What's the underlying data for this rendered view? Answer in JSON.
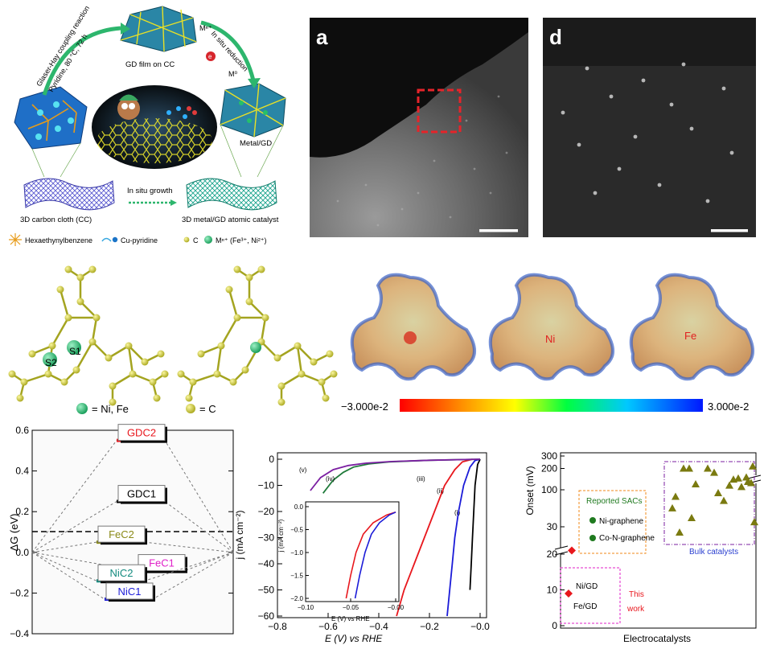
{
  "schematic": {
    "reaction_label": "Glaser-Hay coupling reaction",
    "conditions_label": "Pyridine, 80 °C, 72 h",
    "gd_film_label": "GD film on CC",
    "insitu_reduction_label": "In situ reduction",
    "mn_plus": "Mⁿ⁺",
    "electron": "e",
    "m0": "M⁰",
    "metal_gd_label": "Metal/GD",
    "cc_label": "3D carbon cloth (CC)",
    "insitu_growth_label": "In situ growth",
    "catalyst_label": "3D metal/GD atomic catalyst",
    "legend": {
      "hexa": "Hexaethynylbenzene",
      "cupy": "Cu-pyridine",
      "c": "C",
      "metal": "Mⁿ⁺ (Fe³⁺, Ni²⁺)"
    }
  },
  "micrographs": {
    "panel_a": "a",
    "panel_d": "d"
  },
  "structure": {
    "s1": "S1",
    "s2": "S2",
    "legend_metal": "= Ni, Fe",
    "legend_c": "= C"
  },
  "esp": {
    "ni_label": "Ni",
    "fe_label": "Fe",
    "scale_min": "−3.000e-2",
    "scale_max": "3.000e-2"
  },
  "chart_data": [
    {
      "type": "line",
      "ylabel": "ΔG (eV)",
      "ylim": [
        -0.4,
        0.6
      ],
      "y_ticks": [
        "0.6",
        "0.4",
        "0.2",
        "0.0",
        "−0.2",
        "−0.4"
      ],
      "levels": [
        {
          "name": "GDC2",
          "value": 0.55,
          "color": "#e8171d"
        },
        {
          "name": "GDC1",
          "value": 0.25,
          "color": "#000000"
        },
        {
          "name": "FeC2",
          "value": 0.05,
          "color": "#8a8a17"
        },
        {
          "name": "FeC1",
          "value": -0.09,
          "color": "#e020c8"
        },
        {
          "name": "NiC2",
          "value": -0.14,
          "color": "#118a7e"
        },
        {
          "name": "NiC1",
          "value": -0.23,
          "color": "#1b1bd8"
        }
      ]
    },
    {
      "type": "line",
      "xlabel": "E (V) vs RHE",
      "ylabel": "j (mA cm⁻²)",
      "xlim": [
        -0.8,
        0.0
      ],
      "ylim": [
        -60,
        0
      ],
      "x_ticks": [
        "−0.8",
        "−0.6",
        "−0.4",
        "−0.2",
        "−0.0"
      ],
      "y_ticks": [
        "0",
        "−10",
        "−20",
        "−30",
        "−40",
        "−50",
        "−60"
      ],
      "series": [
        {
          "name": "(i)",
          "color": "#000000",
          "points": [
            [
              -0.04,
              -50
            ],
            [
              -0.035,
              -40
            ],
            [
              -0.03,
              -30
            ],
            [
              -0.025,
              -20
            ],
            [
              -0.02,
              -10
            ],
            [
              -0.01,
              -2
            ],
            [
              0.0,
              0
            ]
          ]
        },
        {
          "name": "(ii)",
          "color": "#1b1bd8",
          "points": [
            [
              -0.13,
              -60
            ],
            [
              -0.12,
              -50
            ],
            [
              -0.11,
              -40
            ],
            [
              -0.1,
              -30
            ],
            [
              -0.085,
              -20
            ],
            [
              -0.065,
              -10
            ],
            [
              -0.04,
              -3
            ],
            [
              -0.02,
              -0.5
            ],
            [
              0.0,
              0
            ]
          ]
        },
        {
          "name": "(iii)",
          "color": "#e8171d",
          "points": [
            [
              -0.33,
              -60
            ],
            [
              -0.3,
              -50
            ],
            [
              -0.26,
              -40
            ],
            [
              -0.22,
              -30
            ],
            [
              -0.18,
              -20
            ],
            [
              -0.14,
              -10
            ],
            [
              -0.1,
              -4
            ],
            [
              -0.07,
              -1
            ],
            [
              -0.03,
              0
            ]
          ]
        },
        {
          "name": "(iv)",
          "color": "#1f7a3a",
          "points": [
            [
              -0.62,
              -13
            ],
            [
              -0.58,
              -8
            ],
            [
              -0.54,
              -5
            ],
            [
              -0.5,
              -3
            ],
            [
              -0.44,
              -1.8
            ],
            [
              -0.36,
              -1
            ],
            [
              -0.2,
              -0.4
            ],
            [
              0.0,
              0
            ]
          ]
        },
        {
          "name": "(v)",
          "color": "#7b1fa2",
          "points": [
            [
              -0.67,
              -12
            ],
            [
              -0.63,
              -7
            ],
            [
              -0.58,
              -4
            ],
            [
              -0.52,
              -2.4
            ],
            [
              -0.45,
              -1.5
            ],
            [
              -0.35,
              -0.9
            ],
            [
              -0.2,
              -0.4
            ],
            [
              0.0,
              0
            ]
          ]
        }
      ],
      "inset": {
        "xlabel": "E (V) vs RHE",
        "ylabel": "j (mA cm⁻²)",
        "xlim": [
          -0.1,
          0.0
        ],
        "ylim": [
          -2.0,
          0.0
        ],
        "x_ticks": [
          "−0.10",
          "−0.05",
          "−0.00"
        ],
        "y_ticks": [
          "0.0",
          "−0.5",
          "−1.0",
          "−1.5",
          "−2.0"
        ],
        "series": [
          {
            "name": "red",
            "color": "#e8171d",
            "points": [
              [
                -0.055,
                -2.0
              ],
              [
                -0.05,
                -1.5
              ],
              [
                -0.044,
                -1.0
              ],
              [
                -0.036,
                -0.6
              ],
              [
                -0.025,
                -0.35
              ],
              [
                -0.01,
                -0.18
              ],
              [
                0.0,
                -0.12
              ]
            ]
          },
          {
            "name": "blue",
            "color": "#1b1bd8",
            "points": [
              [
                -0.045,
                -2.0
              ],
              [
                -0.04,
                -1.5
              ],
              [
                -0.034,
                -1.0
              ],
              [
                -0.027,
                -0.6
              ],
              [
                -0.018,
                -0.35
              ],
              [
                -0.007,
                -0.18
              ],
              [
                0.0,
                -0.12
              ]
            ]
          }
        ]
      }
    },
    {
      "type": "scatter",
      "xlabel": "Electrocatalysts",
      "ylabel": "Onset (mV)",
      "y_ticks": [
        "300",
        "200",
        "100",
        "30",
        "20",
        "10",
        "0"
      ],
      "groups": [
        {
          "name": "This work",
          "color": "#e8171d",
          "marker": "diamond",
          "points": [
            {
              "label": "Ni/GD",
              "y": 21
            },
            {
              "label": "Fe/GD",
              "y": 9
            }
          ]
        },
        {
          "name": "Reported SACs",
          "color": "#1f7a1f",
          "marker": "circle",
          "points": [
            {
              "label": "Ni-graphene",
              "y": 57
            },
            {
              "label": "Co-N-graphene",
              "y": 30
            }
          ]
        },
        {
          "name": "Bulk catalysts",
          "color": "#7a7a10",
          "marker": "triangle",
          "points": [
            {
              "y": 200
            },
            {
              "y": 200
            },
            {
              "y": 80
            },
            {
              "y": 120
            },
            {
              "y": 55
            },
            {
              "y": 200
            },
            {
              "y": 175
            },
            {
              "y": 90
            },
            {
              "y": 70
            },
            {
              "y": 115
            },
            {
              "y": 40
            },
            {
              "y": 25
            },
            {
              "y": 140
            },
            {
              "y": 145
            },
            {
              "y": 110
            },
            {
              "y": 150
            },
            {
              "y": 130
            },
            {
              "y": 125
            },
            {
              "y": 215
            },
            {
              "y": 35
            }
          ]
        }
      ],
      "labels": {
        "reported": "Reported SACs",
        "ni_graphene": "Ni-graphene",
        "co_graphene": "Co-N-graphene",
        "bulk": "Bulk catalysts",
        "ni_gd": "Ni/GD",
        "fe_gd": "Fe/GD",
        "this": "This",
        "work": "work"
      }
    }
  ]
}
